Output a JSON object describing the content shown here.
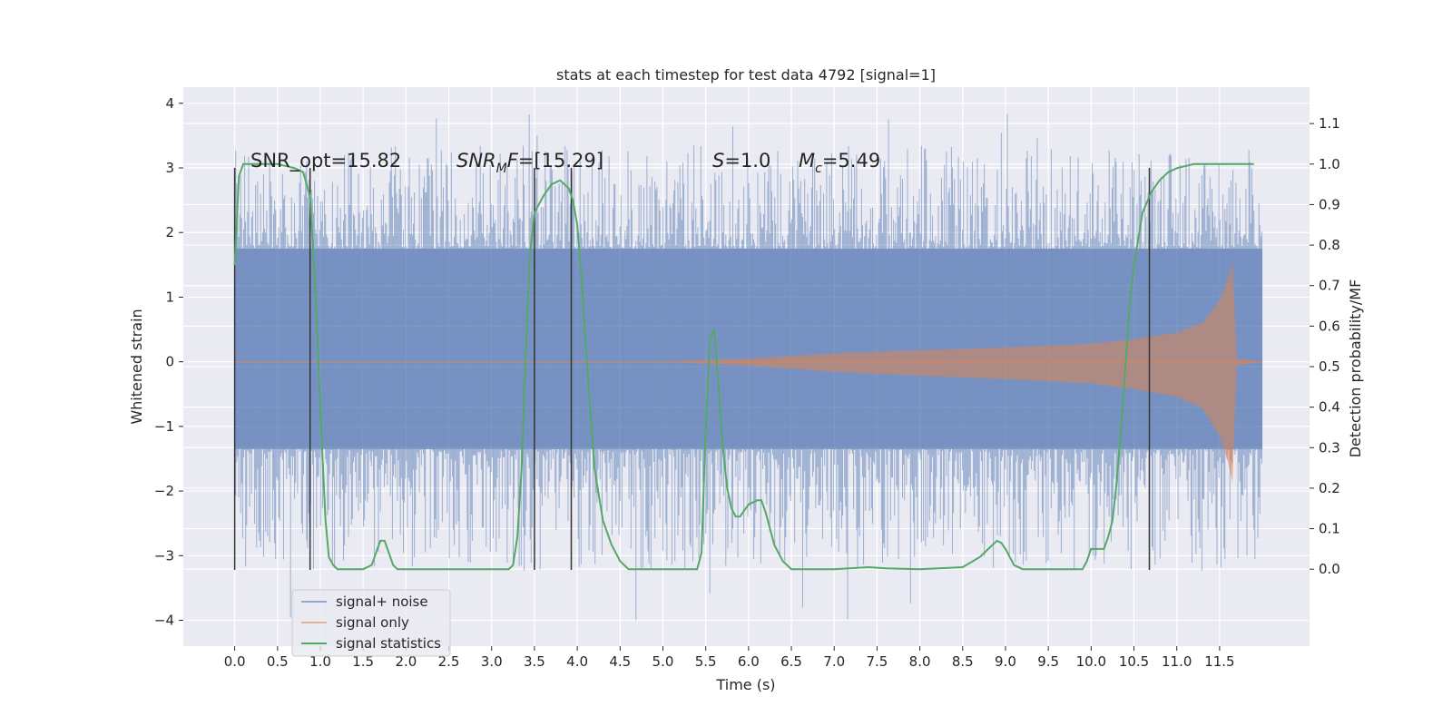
{
  "chart_data": {
    "type": "line",
    "title": "stats at each timestep for test data 4792 [signal=1]",
    "xlabel": "Time (s)",
    "ylabel": "Whitened strain",
    "y2label": "Detection probability/MF",
    "xlim": [
      -0.6,
      12.55
    ],
    "ylim": [
      -4.4,
      4.25
    ],
    "y2lim": [
      -0.19,
      1.19
    ],
    "x_ticks": [
      0.0,
      0.5,
      1.0,
      1.5,
      2.0,
      2.5,
      3.0,
      3.5,
      4.0,
      4.5,
      5.0,
      5.5,
      6.0,
      6.5,
      7.0,
      7.5,
      8.0,
      8.5,
      9.0,
      9.5,
      10.0,
      10.5,
      11.0,
      11.5
    ],
    "x_tick_labels": [
      "0.0",
      "0.5",
      "1.0",
      "1.5",
      "2.0",
      "2.5",
      "3.0",
      "3.5",
      "4.0",
      "4.5",
      "5.0",
      "5.5",
      "6.0",
      "6.5",
      "7.0",
      "7.5",
      "8.0",
      "8.5",
      "9.0",
      "9.5",
      "10.0",
      "10.5",
      "11.0",
      "11.5"
    ],
    "y_ticks": [
      -4,
      -3,
      -2,
      -1,
      0,
      1,
      2,
      3,
      4
    ],
    "y_tick_labels": [
      "−4",
      "−3",
      "−2",
      "−1",
      "0",
      "1",
      "2",
      "3",
      "4"
    ],
    "y2_ticks": [
      0.0,
      0.1,
      0.2,
      0.3,
      0.4,
      0.5,
      0.6,
      0.7,
      0.8,
      0.9,
      1.0,
      1.1
    ],
    "y2_tick_labels": [
      "0.0",
      "0.1",
      "0.2",
      "0.3",
      "0.4",
      "0.5",
      "0.6",
      "0.7",
      "0.8",
      "0.9",
      "1.0",
      "1.1"
    ],
    "grid": true,
    "legend_position": "lower-left",
    "annotations": {
      "snr_opt": "SNR_opt=15.82",
      "snr_mf": "SNR",
      "snr_mf_sub": "M",
      "snr_mf_rest": "F=[15.29]",
      "s_label": "S",
      "s_value": "=1.0",
      "mc_label": "M",
      "mc_sub": "c",
      "mc_value": "=5.49"
    },
    "series": [
      {
        "name": "signal+ noise",
        "color": "#4c72b0",
        "t_range": [
          0.0,
          12.0
        ],
        "noise_band_y": [
          -1.35,
          1.75
        ],
        "noise_extremes_y": [
          -4.05,
          3.85
        ]
      },
      {
        "name": "signal only",
        "color": "#dd8452",
        "t_range": [
          0.0,
          12.0
        ],
        "envelope": {
          "t": [
            0.0,
            5.0,
            6.0,
            7.0,
            8.0,
            9.0,
            10.0,
            10.5,
            11.0,
            11.3,
            11.5,
            11.6,
            11.65,
            11.7,
            12.0
          ],
          "amp": [
            0.0,
            0.0,
            0.05,
            0.13,
            0.18,
            0.22,
            0.28,
            0.35,
            0.45,
            0.6,
            0.95,
            1.3,
            1.55,
            0.05,
            0.0
          ]
        }
      },
      {
        "name": "signal statistics",
        "color": "#55a868",
        "axis": "right",
        "x": [
          0.0,
          0.05,
          0.1,
          0.2,
          0.3,
          0.5,
          0.7,
          0.8,
          0.88,
          0.92,
          0.97,
          1.02,
          1.06,
          1.1,
          1.15,
          1.2,
          1.3,
          1.5,
          1.6,
          1.65,
          1.7,
          1.75,
          1.8,
          1.85,
          1.9,
          2.0,
          3.0,
          3.2,
          3.25,
          3.3,
          3.35,
          3.4,
          3.45,
          3.5,
          3.6,
          3.7,
          3.8,
          3.9,
          3.95,
          4.0,
          4.05,
          4.1,
          4.2,
          4.3,
          4.4,
          4.5,
          4.6,
          4.7,
          4.8,
          5.4,
          5.45,
          5.5,
          5.55,
          5.6,
          5.65,
          5.7,
          5.75,
          5.8,
          5.85,
          5.9,
          6.0,
          6.1,
          6.15,
          6.2,
          6.25,
          6.3,
          6.4,
          6.5,
          7.0,
          7.4,
          7.6,
          8.0,
          8.5,
          8.7,
          8.8,
          8.9,
          8.95,
          9.0,
          9.05,
          9.1,
          9.2,
          9.3,
          9.4,
          9.8,
          9.9,
          9.95,
          10.0,
          10.1,
          10.15,
          10.2,
          10.25,
          10.3,
          10.35,
          10.4,
          10.45,
          10.5,
          10.6,
          10.7,
          10.8,
          10.9,
          11.0,
          11.2,
          11.5,
          11.9
        ],
        "y": [
          0.75,
          0.97,
          1.0,
          1.0,
          1.0,
          1.0,
          0.99,
          0.98,
          0.92,
          0.78,
          0.55,
          0.3,
          0.12,
          0.03,
          0.01,
          0.0,
          0.0,
          0.0,
          0.01,
          0.04,
          0.07,
          0.07,
          0.04,
          0.01,
          0.0,
          0.0,
          0.0,
          0.0,
          0.01,
          0.08,
          0.25,
          0.55,
          0.78,
          0.88,
          0.92,
          0.95,
          0.96,
          0.94,
          0.91,
          0.85,
          0.72,
          0.55,
          0.25,
          0.12,
          0.06,
          0.02,
          0.0,
          0.0,
          0.0,
          0.0,
          0.04,
          0.35,
          0.57,
          0.59,
          0.45,
          0.3,
          0.2,
          0.15,
          0.13,
          0.13,
          0.16,
          0.17,
          0.17,
          0.14,
          0.1,
          0.06,
          0.02,
          0.0,
          0.0,
          0.005,
          0.002,
          0.0,
          0.005,
          0.03,
          0.05,
          0.07,
          0.065,
          0.05,
          0.03,
          0.01,
          0.0,
          0.0,
          0.0,
          0.0,
          0.0,
          0.02,
          0.05,
          0.05,
          0.05,
          0.08,
          0.12,
          0.22,
          0.35,
          0.5,
          0.65,
          0.75,
          0.88,
          0.93,
          0.96,
          0.98,
          0.99,
          1.0,
          1.0,
          1.0
        ]
      }
    ],
    "vlines": [
      0.0,
      0.88,
      3.5,
      3.93,
      10.68
    ],
    "vline_range_y": [
      -3.22,
      3.0
    ],
    "vline_color": "#333333"
  }
}
